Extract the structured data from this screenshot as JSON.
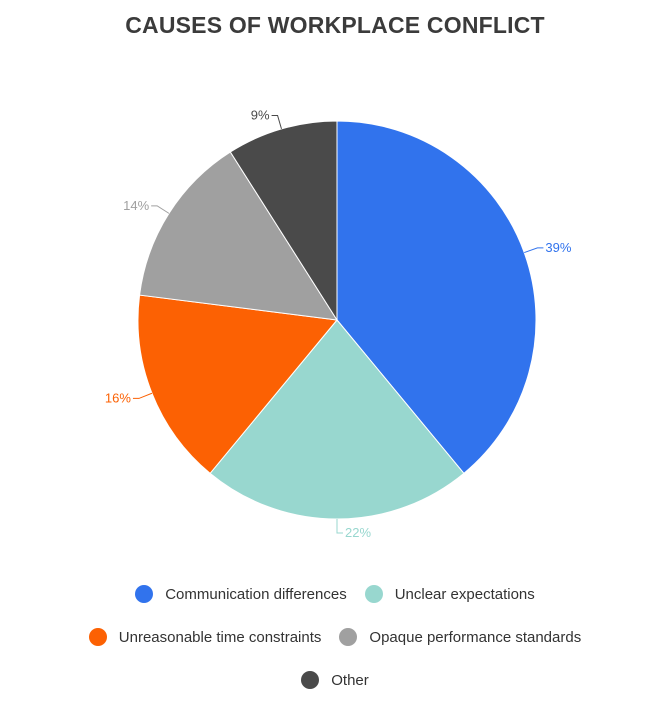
{
  "chart_data": {
    "type": "pie",
    "title": "CAUSES OF WORKPLACE CONFLICT",
    "slices": [
      {
        "name": "Communication differences",
        "value": 39,
        "label": "39%",
        "color": "#3173ed"
      },
      {
        "name": "Unclear expectations",
        "value": 22,
        "label": "22%",
        "color": "#98d7cf"
      },
      {
        "name": "Unreasonable time constraints",
        "value": 16,
        "label": "16%",
        "color": "#fc6103"
      },
      {
        "name": "Opaque performance standards",
        "value": 14,
        "label": "14%",
        "color": "#a0a0a0"
      },
      {
        "name": "Other",
        "value": 9,
        "label": "9%",
        "color": "#4a4a4a"
      }
    ],
    "legend_position": "bottom"
  }
}
